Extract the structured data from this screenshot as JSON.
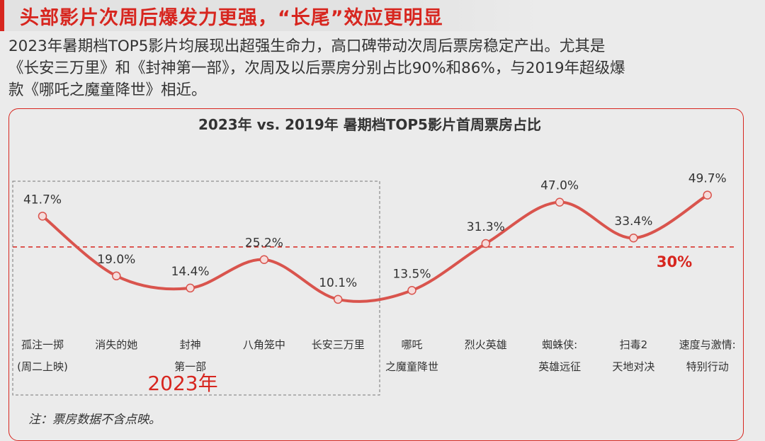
{
  "headline": "头部影片次周后爆发力更强，“长尾”效应更明显",
  "description": [
    "2023年暑期档TOP5影片均展现出超强生命力，高口碑带动次周后票房稳定产出。尤其是",
    "《长安三万里》和《封神第一部》，次周及以后票房分别占比90%和86%，与2019年超级爆",
    "款《哪吒之魔童降世》相近。"
  ],
  "note": "注：票房数据不含点映。",
  "colors": {
    "accent": "#d7261f",
    "line": "#d9544d",
    "text": "#333333"
  },
  "chart_data": {
    "type": "line",
    "title": "2023年 vs. 2019年 暑期档TOP5影片首周票房占比",
    "categories": [
      [
        "孤注一掷",
        "(周二上映)"
      ],
      [
        "消失的她"
      ],
      [
        "封神",
        "第一部"
      ],
      [
        "八角笼中"
      ],
      [
        "长安三万里"
      ],
      [
        "哪吒",
        "之魔童降世"
      ],
      [
        "烈火英雄"
      ],
      [
        "蜘蛛侠:",
        "英雄远征"
      ],
      [
        "扫毒2",
        "天地对决"
      ],
      [
        "速度与激情:",
        "特别行动"
      ]
    ],
    "values": [
      41.7,
      19.0,
      14.4,
      25.2,
      10.1,
      13.5,
      31.3,
      47.0,
      33.4,
      49.7
    ],
    "data_labels": [
      "41.7%",
      "19.0%",
      "14.4%",
      "25.2%",
      "10.1%",
      "13.5%",
      "31.3%",
      "47.0%",
      "33.4%",
      "49.7%"
    ],
    "reference_line": {
      "value": 30,
      "label": "30%"
    },
    "group": {
      "label": "2023年",
      "first_index": 0,
      "last_index": 4
    },
    "grid": false
  }
}
